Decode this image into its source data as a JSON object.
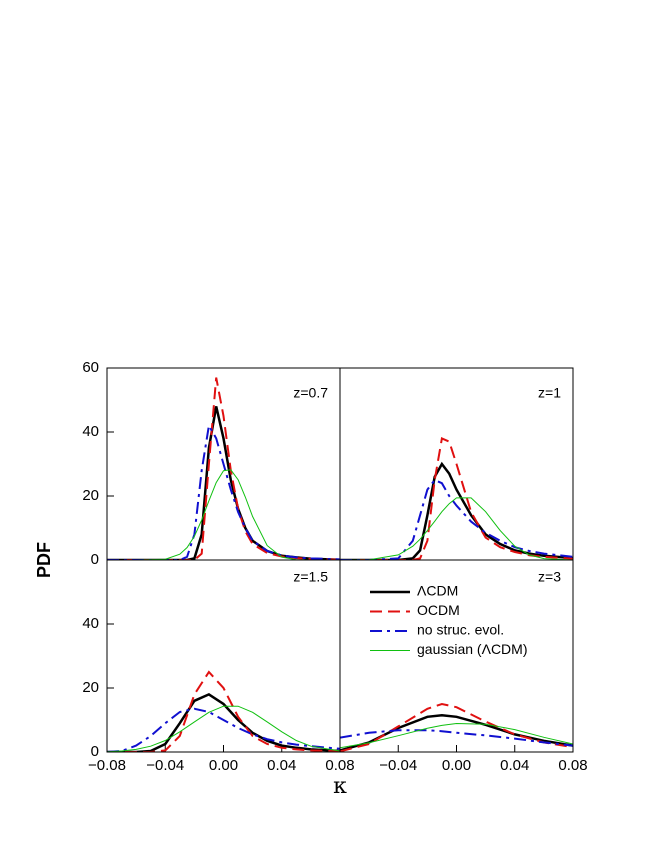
{
  "chart_data": [
    {
      "type": "line",
      "annotation": "z=0.7",
      "ylabel": "PDF",
      "xlim": [
        -0.08,
        0.08
      ],
      "ylim": [
        0,
        60
      ],
      "yticks": [
        0,
        20,
        40,
        60
      ],
      "x": [
        -0.08,
        -0.06,
        -0.04,
        -0.03,
        -0.025,
        -0.02,
        -0.015,
        -0.01,
        -0.005,
        0,
        0.005,
        0.01,
        0.015,
        0.02,
        0.03,
        0.04,
        0.05,
        0.06,
        0.08
      ],
      "series": [
        {
          "color": "#000000",
          "style": "solid",
          "values": [
            0,
            0,
            0,
            0,
            0,
            0.5,
            8,
            35,
            48,
            38,
            25,
            16,
            10,
            6,
            2.8,
            1.3,
            0.8,
            0.4,
            0.1
          ]
        },
        {
          "color": "#e01010",
          "style": "dashed",
          "values": [
            0,
            0,
            0,
            0,
            0,
            0,
            2,
            30,
            57,
            45,
            28,
            16,
            9,
            5,
            2.2,
            1.1,
            0.6,
            0.3,
            0.1
          ]
        },
        {
          "color": "#1010d0",
          "style": "dashdot",
          "values": [
            0,
            0,
            0,
            0,
            1,
            8,
            28,
            42,
            38,
            30,
            22,
            15,
            10,
            6,
            2.8,
            1.4,
            0.8,
            0.5,
            0.2
          ]
        },
        {
          "color": "#10c010",
          "style": "thin",
          "values": [
            0,
            0,
            0.25,
            1.8,
            3.9,
            7.4,
            12.5,
            18.5,
            24.2,
            27.9,
            28.2,
            25.1,
            19.7,
            13.6,
            4.5,
            0.9,
            0.1,
            0,
            0
          ]
        }
      ]
    },
    {
      "type": "line",
      "annotation": "z=1",
      "xlim": [
        -0.08,
        0.08
      ],
      "ylim": [
        0,
        60
      ],
      "x": [
        -0.08,
        -0.06,
        -0.04,
        -0.03,
        -0.025,
        -0.02,
        -0.015,
        -0.01,
        -0.005,
        0,
        0.01,
        0.02,
        0.03,
        0.04,
        0.05,
        0.06,
        0.08
      ],
      "series": [
        {
          "color": "#000000",
          "style": "solid",
          "values": [
            0,
            0,
            0,
            0.5,
            3,
            14,
            26,
            30,
            27,
            22,
            14,
            8,
            5,
            3,
            2,
            1.3,
            0.6
          ]
        },
        {
          "color": "#e01010",
          "style": "dashed",
          "values": [
            0,
            0,
            0,
            0,
            0.5,
            6,
            25,
            38,
            37,
            30,
            15,
            7,
            4,
            2.5,
            1.5,
            1,
            0.4
          ]
        },
        {
          "color": "#1010d0",
          "style": "dashdot",
          "values": [
            0,
            0,
            0.5,
            6,
            14,
            22,
            25,
            24,
            20,
            17,
            12,
            8.5,
            6,
            4,
            2.8,
            2,
            1
          ]
        },
        {
          "color": "#10c010",
          "style": "thin",
          "values": [
            0,
            0.1,
            1.6,
            4.3,
            6.5,
            9.2,
            12.1,
            15.1,
            17.6,
            19.4,
            19.4,
            15.1,
            9.2,
            4.3,
            1.6,
            0.45,
            0
          ]
        }
      ]
    },
    {
      "type": "line",
      "annotation": "z=1.5",
      "xlabel": "κ",
      "xlim": [
        -0.08,
        0.08
      ],
      "ylim": [
        0,
        60
      ],
      "yticks": [
        0,
        20,
        40
      ],
      "xticks": [
        {
          "value": -0.08,
          "label": "−0.08"
        },
        {
          "value": -0.04,
          "label": "−0.04"
        },
        {
          "value": 0,
          "label": "0.00"
        },
        {
          "value": 0.04,
          "label": "0.04"
        },
        {
          "value": 0.08,
          "label": "0.08"
        }
      ],
      "x": [
        -0.08,
        -0.07,
        -0.06,
        -0.05,
        -0.04,
        -0.03,
        -0.02,
        -0.01,
        0,
        0.01,
        0.02,
        0.03,
        0.04,
        0.05,
        0.06,
        0.08
      ],
      "series": [
        {
          "color": "#000000",
          "style": "solid",
          "values": [
            0,
            0,
            0,
            0.3,
            2.5,
            9,
            16,
            18,
            15,
            10,
            6,
            3.5,
            2,
            1.3,
            0.8,
            0.3
          ]
        },
        {
          "color": "#e01010",
          "style": "dashed",
          "values": [
            0,
            0,
            0,
            0,
            0.5,
            5,
            18,
            25,
            20,
            11,
            5,
            2.5,
            1.3,
            0.8,
            0.5,
            0.2
          ]
        },
        {
          "color": "#1010d0",
          "style": "dashdot",
          "values": [
            0,
            0.3,
            2,
            5,
            9,
            12.5,
            13.5,
            12.5,
            10,
            7.5,
            5.5,
            4,
            3,
            2.3,
            1.8,
            1
          ]
        },
        {
          "color": "#10c010",
          "style": "thin",
          "values": [
            0.1,
            0.3,
            0.8,
            1.8,
            3.6,
            6.3,
            9.4,
            12.4,
            14.3,
            14.3,
            12.4,
            9.4,
            6.3,
            3.6,
            1.8,
            0.3
          ]
        }
      ]
    },
    {
      "type": "line",
      "annotation": "z=3",
      "legend": "upper right",
      "xlim": [
        -0.08,
        0.08
      ],
      "ylim": [
        0,
        60
      ],
      "xticks": [
        {
          "value": -0.04,
          "label": "−0.04"
        },
        {
          "value": 0,
          "label": "0.00"
        },
        {
          "value": 0.04,
          "label": "0.04"
        },
        {
          "value": 0.08,
          "label": "0.08"
        }
      ],
      "x": [
        -0.08,
        -0.06,
        -0.04,
        -0.02,
        -0.01,
        0,
        0.02,
        0.04,
        0.06,
        0.08
      ],
      "series": [
        {
          "name": "ΛCDM",
          "color": "#000000",
          "style": "solid",
          "values": [
            0.5,
            3,
            7.5,
            11,
            11.5,
            11,
            8.5,
            5.5,
            3.5,
            2
          ]
        },
        {
          "name": "OCDM",
          "color": "#e01010",
          "style": "dashed",
          "values": [
            0.2,
            2.5,
            8,
            13.5,
            15,
            14,
            9.5,
            5.5,
            3,
            1.5
          ]
        },
        {
          "name": "no struc. evol.",
          "color": "#1010d0",
          "style": "dashdot",
          "values": [
            4.5,
            6,
            6.8,
            6.8,
            6.5,
            6,
            5.2,
            4.2,
            3,
            2
          ]
        },
        {
          "name": "gaussian (ΛCDM)",
          "color": "#10c010",
          "style": "thin",
          "values": [
            1.3,
            2.9,
            5.1,
            7.4,
            8.3,
            8.9,
            8.7,
            7,
            4.6,
            2.5
          ]
        }
      ]
    }
  ]
}
